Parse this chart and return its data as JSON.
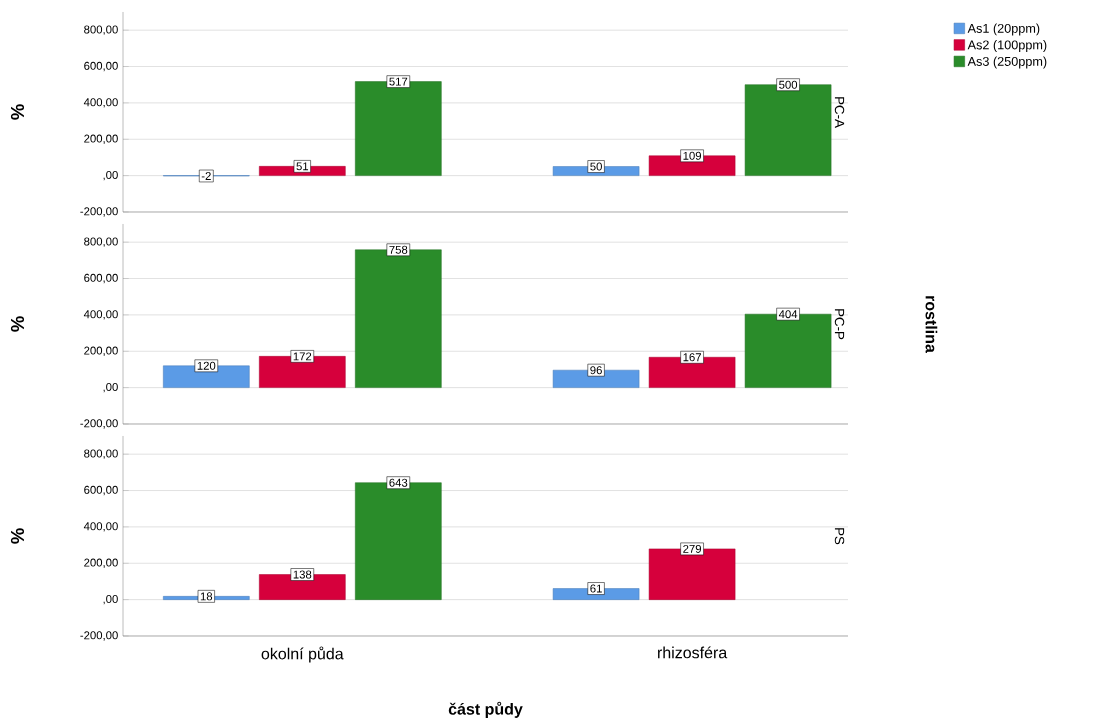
{
  "chart_data": [
    {
      "type": "bar",
      "title": "PC-A",
      "ylabel": "%",
      "categories": [
        null,
        null
      ],
      "series": [
        {
          "name": "As1 (20ppm)",
          "color": "#5b9be6",
          "values": [
            -2,
            50
          ]
        },
        {
          "name": "As2 (100ppm)",
          "color": "#d6003c",
          "values": [
            51,
            109
          ]
        },
        {
          "name": "As3  (250ppm)",
          "color": "#2a8c2a",
          "values": [
            517,
            500
          ]
        }
      ],
      "ylim": [
        -200,
        900
      ],
      "yticks": [
        {
          "value": -200,
          "label": "-200,00"
        },
        {
          "value": 0,
          "label": ",00"
        },
        {
          "value": 200,
          "label": "200,00"
        },
        {
          "value": 400,
          "label": "400,00"
        },
        {
          "value": 600,
          "label": "600,00"
        },
        {
          "value": 800,
          "label": "800,00"
        }
      ],
      "grid": "y",
      "data_labels": true,
      "legend": "right",
      "tick_labels": "y"
    },
    {
      "type": "bar",
      "title": "PC-P",
      "ylabel": "%",
      "y2label": "rostlina",
      "categories": [
        null,
        null
      ],
      "series": [
        {
          "color": "#5b9be6",
          "values": [
            120,
            96
          ]
        },
        {
          "color": "#d6003c",
          "values": [
            172,
            167
          ]
        },
        {
          "color": "#2a8c2a",
          "values": [
            758,
            404
          ]
        }
      ],
      "ylim": [
        -200,
        900
      ],
      "yticks": [
        {
          "value": -200,
          "label": "-200,00"
        },
        {
          "value": 0,
          "label": ",00"
        },
        {
          "value": 200,
          "label": "200,00"
        },
        {
          "value": 400,
          "label": "400,00"
        },
        {
          "value": 600,
          "label": "600,00"
        },
        {
          "value": 800,
          "label": "800,00"
        }
      ],
      "grid": "y",
      "data_labels": true,
      "tick_labels": "y"
    },
    {
      "type": "bar",
      "title": "PS",
      "ylabel": "%",
      "xlabel": "část půdy",
      "categories": [
        "okolní půda",
        "rhizosféra"
      ],
      "series": [
        {
          "color": "#5b9be6",
          "values": [
            18,
            61
          ]
        },
        {
          "color": "#d6003c",
          "values": [
            138,
            279
          ]
        },
        {
          "color": "#2a8c2a",
          "values": [
            643,
            null
          ]
        }
      ],
      "ylim": [
        -200,
        900
      ],
      "yticks": [
        {
          "value": -200,
          "label": "-200,00"
        },
        {
          "value": 0,
          "label": ",00"
        },
        {
          "value": 200,
          "label": "200,00"
        },
        {
          "value": 400,
          "label": "400,00"
        },
        {
          "value": 600,
          "label": "600,00"
        },
        {
          "value": 800,
          "label": "800,00"
        }
      ],
      "grid": "y",
      "data_labels": true
    }
  ]
}
